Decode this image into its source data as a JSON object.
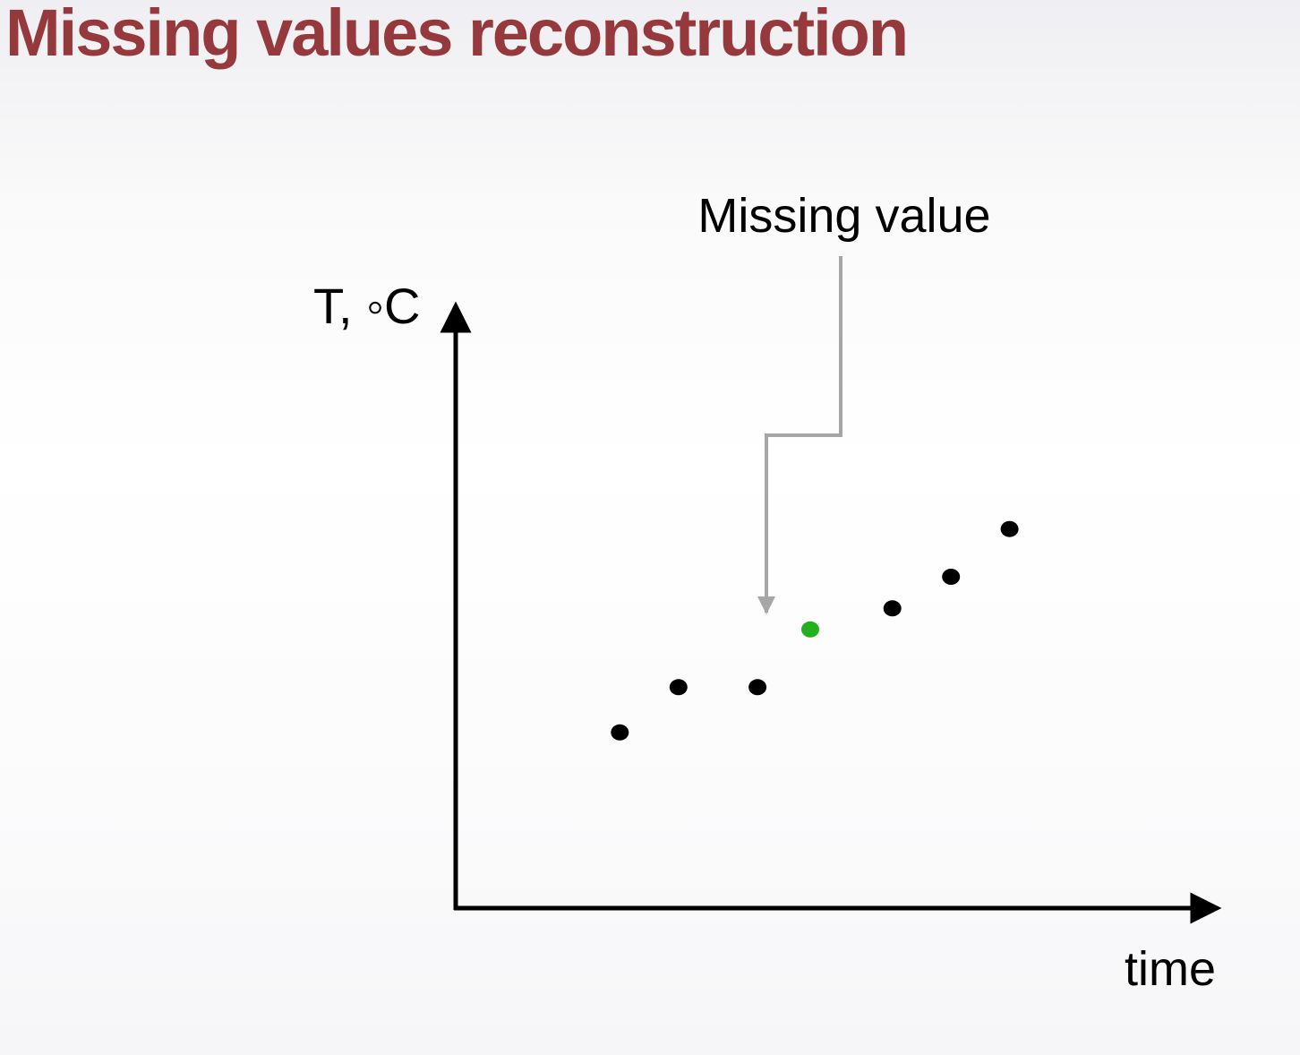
{
  "slide": {
    "title": "Missing values reconstruction"
  },
  "chart_data": {
    "type": "scatter",
    "ylabel": "T, ◦C",
    "xlabel": "time",
    "annotation": "Missing value",
    "points": [
      {
        "x": 1.0,
        "y": 1.3,
        "missing": false
      },
      {
        "x": 2.0,
        "y": 2.2,
        "missing": false
      },
      {
        "x": 3.35,
        "y": 2.2,
        "missing": false
      },
      {
        "x": 4.25,
        "y": 3.35,
        "missing": true
      },
      {
        "x": 5.65,
        "y": 3.77,
        "missing": false
      },
      {
        "x": 6.65,
        "y": 4.4,
        "missing": false
      },
      {
        "x": 7.65,
        "y": 5.35,
        "missing": false
      }
    ],
    "xlim": [
      -1.8,
      11.2
    ],
    "ylim": [
      -2.2,
      10.0
    ],
    "grid": false,
    "colors": {
      "point": "#000000",
      "missing_point": "#22b11c",
      "annotation_line": "#a6a6a6",
      "axis": "#000000"
    }
  }
}
